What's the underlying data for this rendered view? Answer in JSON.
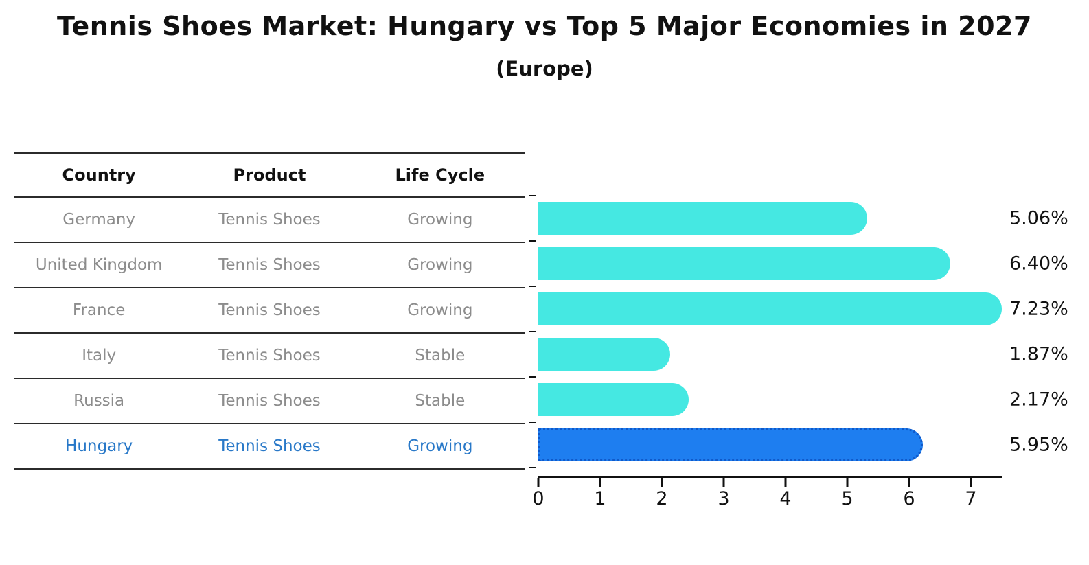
{
  "title": "Tennis Shoes Market: Hungary vs Top 5 Major Economies in 2027",
  "subtitle": "(Europe)",
  "table": {
    "headers": [
      "Country",
      "Product",
      "Life Cycle"
    ],
    "rows": [
      {
        "country": "Germany",
        "product": "Tennis Shoes",
        "life_cycle": "Growing",
        "highlighted": false
      },
      {
        "country": "United Kingdom",
        "product": "Tennis Shoes",
        "life_cycle": "Growing",
        "highlighted": false
      },
      {
        "country": "France",
        "product": "Tennis Shoes",
        "life_cycle": "Growing",
        "highlighted": false
      },
      {
        "country": "Italy",
        "product": "Tennis Shoes",
        "life_cycle": "Stable",
        "highlighted": false
      },
      {
        "country": "Russia",
        "product": "Tennis Shoes",
        "life_cycle": "Stable",
        "highlighted": false
      },
      {
        "country": "Hungary",
        "product": "Tennis Shoes",
        "life_cycle": "Growing",
        "highlighted": true
      }
    ]
  },
  "chart_data": {
    "type": "bar",
    "orientation": "horizontal",
    "title": "Tennis Shoes Market: Hungary vs Top 5 Major Economies in 2027",
    "subtitle": "(Europe)",
    "categories": [
      "Germany",
      "United Kingdom",
      "France",
      "Italy",
      "Russia",
      "Hungary"
    ],
    "values": [
      5.06,
      6.4,
      7.23,
      1.87,
      2.17,
      5.95
    ],
    "value_labels": [
      "5.06%",
      "6.40%",
      "7.23%",
      "1.87%",
      "2.17%",
      "5.95%"
    ],
    "xlabel": "",
    "ylabel": "",
    "xlim": [
      0,
      7.5
    ],
    "x_ticks": [
      0,
      1,
      2,
      3,
      4,
      5,
      6,
      7
    ],
    "grid": false,
    "legend": false,
    "highlight_index": 5,
    "bar_color": "#45e8e2",
    "highlight_bar_color": "#1e7ef0",
    "highlight_bar_edge_color": "#1059c9",
    "highlight_text_color": "#2878c8"
  }
}
